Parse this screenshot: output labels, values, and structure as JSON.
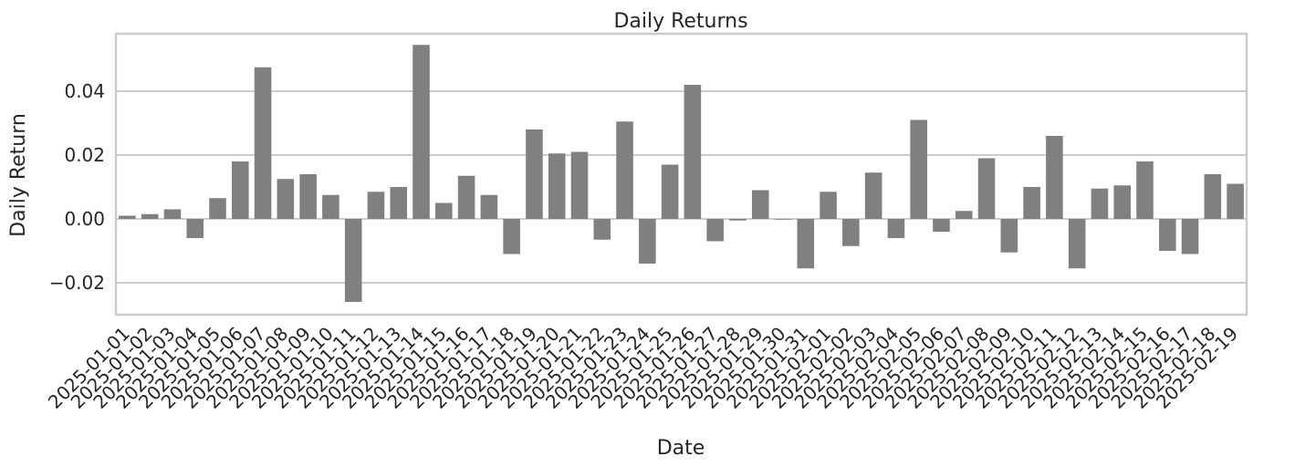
{
  "chart_data": {
    "type": "bar",
    "title": "Daily Returns",
    "xlabel": "Date",
    "ylabel": "Daily Return",
    "ylim": [
      -0.03,
      0.058
    ],
    "yticks": [
      -0.02,
      0.0,
      0.02,
      0.04
    ],
    "ytick_labels": [
      "−0.02",
      "0.00",
      "0.02",
      "0.04"
    ],
    "grid": true,
    "bar_color": "#808080",
    "categories": [
      "2025-01-01",
      "2025-01-02",
      "2025-01-03",
      "2025-01-04",
      "2025-01-05",
      "2025-01-06",
      "2025-01-07",
      "2025-01-08",
      "2025-01-09",
      "2025-01-10",
      "2025-01-11",
      "2025-01-12",
      "2025-01-13",
      "2025-01-14",
      "2025-01-15",
      "2025-01-16",
      "2025-01-17",
      "2025-01-18",
      "2025-01-19",
      "2025-01-20",
      "2025-01-21",
      "2025-01-22",
      "2025-01-23",
      "2025-01-24",
      "2025-01-25",
      "2025-01-26",
      "2025-01-27",
      "2025-01-28",
      "2025-01-29",
      "2025-01-30",
      "2025-01-31",
      "2025-02-01",
      "2025-02-02",
      "2025-02-03",
      "2025-02-04",
      "2025-02-05",
      "2025-02-06",
      "2025-02-07",
      "2025-02-08",
      "2025-02-09",
      "2025-02-10",
      "2025-02-11",
      "2025-02-12",
      "2025-02-13",
      "2025-02-14",
      "2025-02-15",
      "2025-02-16",
      "2025-02-17",
      "2025-02-18",
      "2025-02-19"
    ],
    "values": [
      0.001,
      0.0015,
      0.003,
      -0.006,
      0.0065,
      0.018,
      0.0475,
      0.0125,
      0.014,
      0.0075,
      -0.026,
      0.0085,
      0.01,
      0.0545,
      0.005,
      0.0135,
      0.0075,
      -0.011,
      0.028,
      0.0205,
      0.021,
      -0.0065,
      0.0305,
      -0.014,
      0.017,
      0.042,
      -0.007,
      -0.0005,
      0.009,
      0.0,
      -0.0155,
      0.0085,
      -0.0085,
      0.0145,
      -0.006,
      0.031,
      -0.004,
      0.0025,
      0.019,
      -0.0105,
      0.01,
      0.026,
      -0.0155,
      0.0095,
      0.0105,
      0.018,
      -0.01,
      -0.011,
      0.014,
      0.011
    ]
  }
}
